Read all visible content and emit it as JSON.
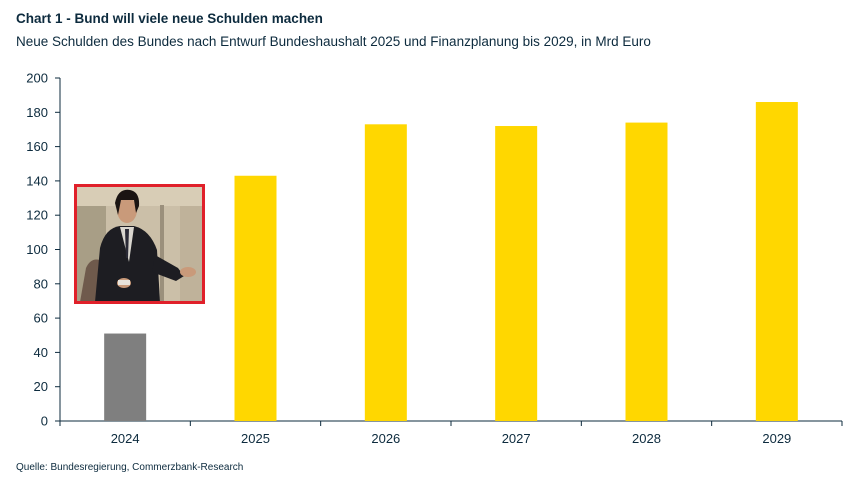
{
  "header": {
    "title": "Chart 1 - Bund will viele neue Schulden machen",
    "subtitle": "Neue Schulden des Bundes nach Entwurf Bundeshaushalt 2025 und Finanzplanung bis 2029, in Mrd Euro"
  },
  "footer": {
    "source": "Quelle: Bundesregierung, Commerzbank-Research"
  },
  "colors": {
    "historic_bar": "#7f7f7f",
    "plan_bar": "#ffd700",
    "axis": "#0d2b3e",
    "inset_frame": "#e0202a"
  },
  "inset_image": {
    "description_icon": "confused-man-meme-icon"
  },
  "chart_data": {
    "type": "bar",
    "categories": [
      "2024",
      "2025",
      "2026",
      "2027",
      "2028",
      "2029"
    ],
    "values": [
      51,
      143,
      173,
      172,
      174,
      186
    ],
    "bar_colors": [
      "#7f7f7f",
      "#ffd700",
      "#ffd700",
      "#ffd700",
      "#ffd700",
      "#ffd700"
    ],
    "ylim": [
      0,
      200
    ],
    "yticks": [
      0,
      20,
      40,
      60,
      80,
      100,
      120,
      140,
      160,
      180,
      200
    ],
    "grid": false,
    "legend": "none"
  }
}
